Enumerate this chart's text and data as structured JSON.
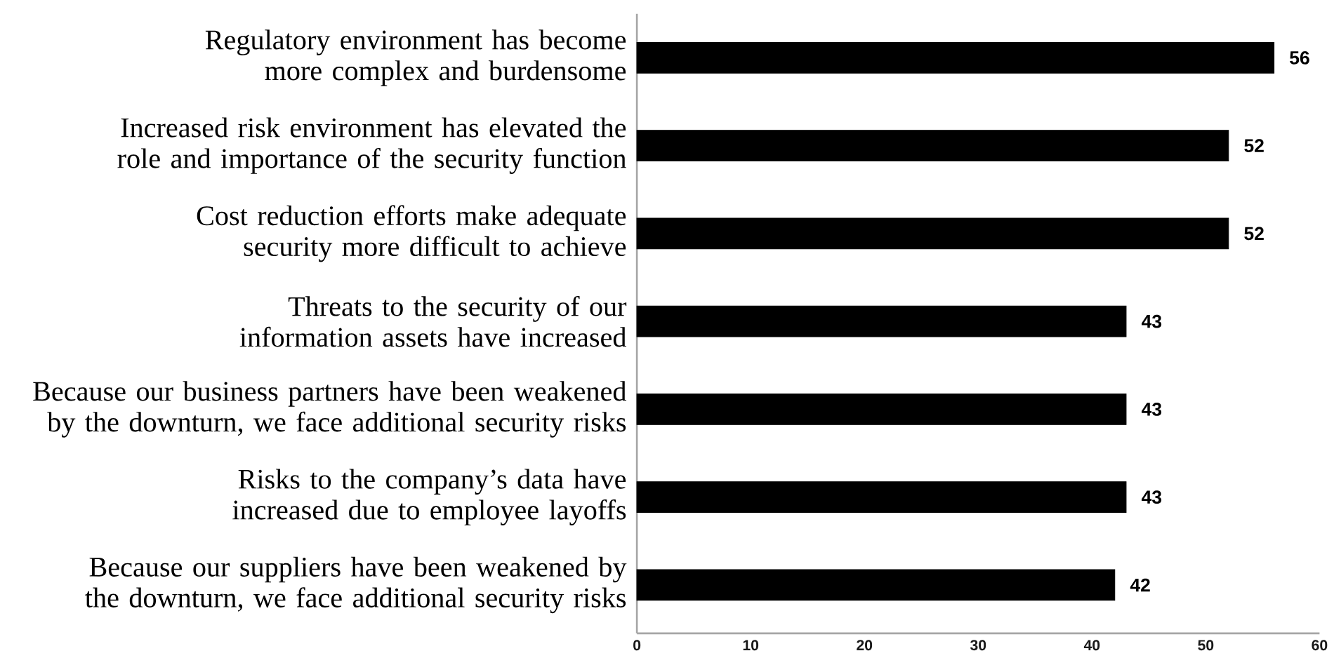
{
  "chart_data": {
    "type": "bar",
    "orientation": "horizontal",
    "categories": [
      "Regulatory environment has become more complex and burdensome",
      "Increased risk environment has elevated the role and importance of the security function",
      "Cost reduction efforts make adequate security more difficult to achieve",
      "Threats to the security of our information assets have increased",
      "Because our business partners have been weakened by the downturn, we face additional security risks",
      "Risks to the company’s data have increased due to employee layoffs",
      "Because our suppliers have been weakened by the downturn, we face additional security risks"
    ],
    "values": [
      56,
      52,
      52,
      43,
      43,
      43,
      42
    ],
    "color": "#000000",
    "xlim": [
      0,
      60
    ],
    "xticks": [
      0,
      10,
      20,
      30,
      40,
      50,
      60
    ],
    "data_labels": true
  }
}
